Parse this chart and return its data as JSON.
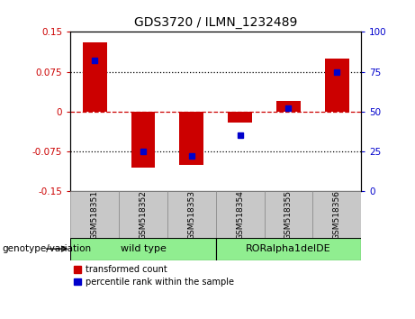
{
  "title": "GDS3720 / ILMN_1232489",
  "samples": [
    "GSM518351",
    "GSM518352",
    "GSM518353",
    "GSM518354",
    "GSM518355",
    "GSM518356"
  ],
  "red_values": [
    0.13,
    -0.105,
    -0.1,
    -0.02,
    0.02,
    0.1
  ],
  "blue_values_pct": [
    82,
    25,
    22,
    35,
    52,
    75
  ],
  "group_label": "genotype/variation",
  "group1_label": "wild type",
  "group2_label": "RORalpha1delDE",
  "group_color": "#90EE90",
  "ylim_left": [
    -0.15,
    0.15
  ],
  "ylim_right": [
    0,
    100
  ],
  "yticks_left": [
    -0.15,
    -0.075,
    0,
    0.075,
    0.15
  ],
  "yticks_right": [
    0,
    25,
    50,
    75,
    100
  ],
  "hlines_dotted": [
    -0.075,
    0.075
  ],
  "hline_dashed": 0,
  "legend_red": "transformed count",
  "legend_blue": "percentile rank within the sample",
  "bar_width": 0.5,
  "red_color": "#CC0000",
  "blue_color": "#0000CC",
  "left_tick_color": "#CC0000",
  "right_tick_color": "#0000CC",
  "sample_box_color": "#C8C8C8",
  "sample_box_edge": "#888888"
}
